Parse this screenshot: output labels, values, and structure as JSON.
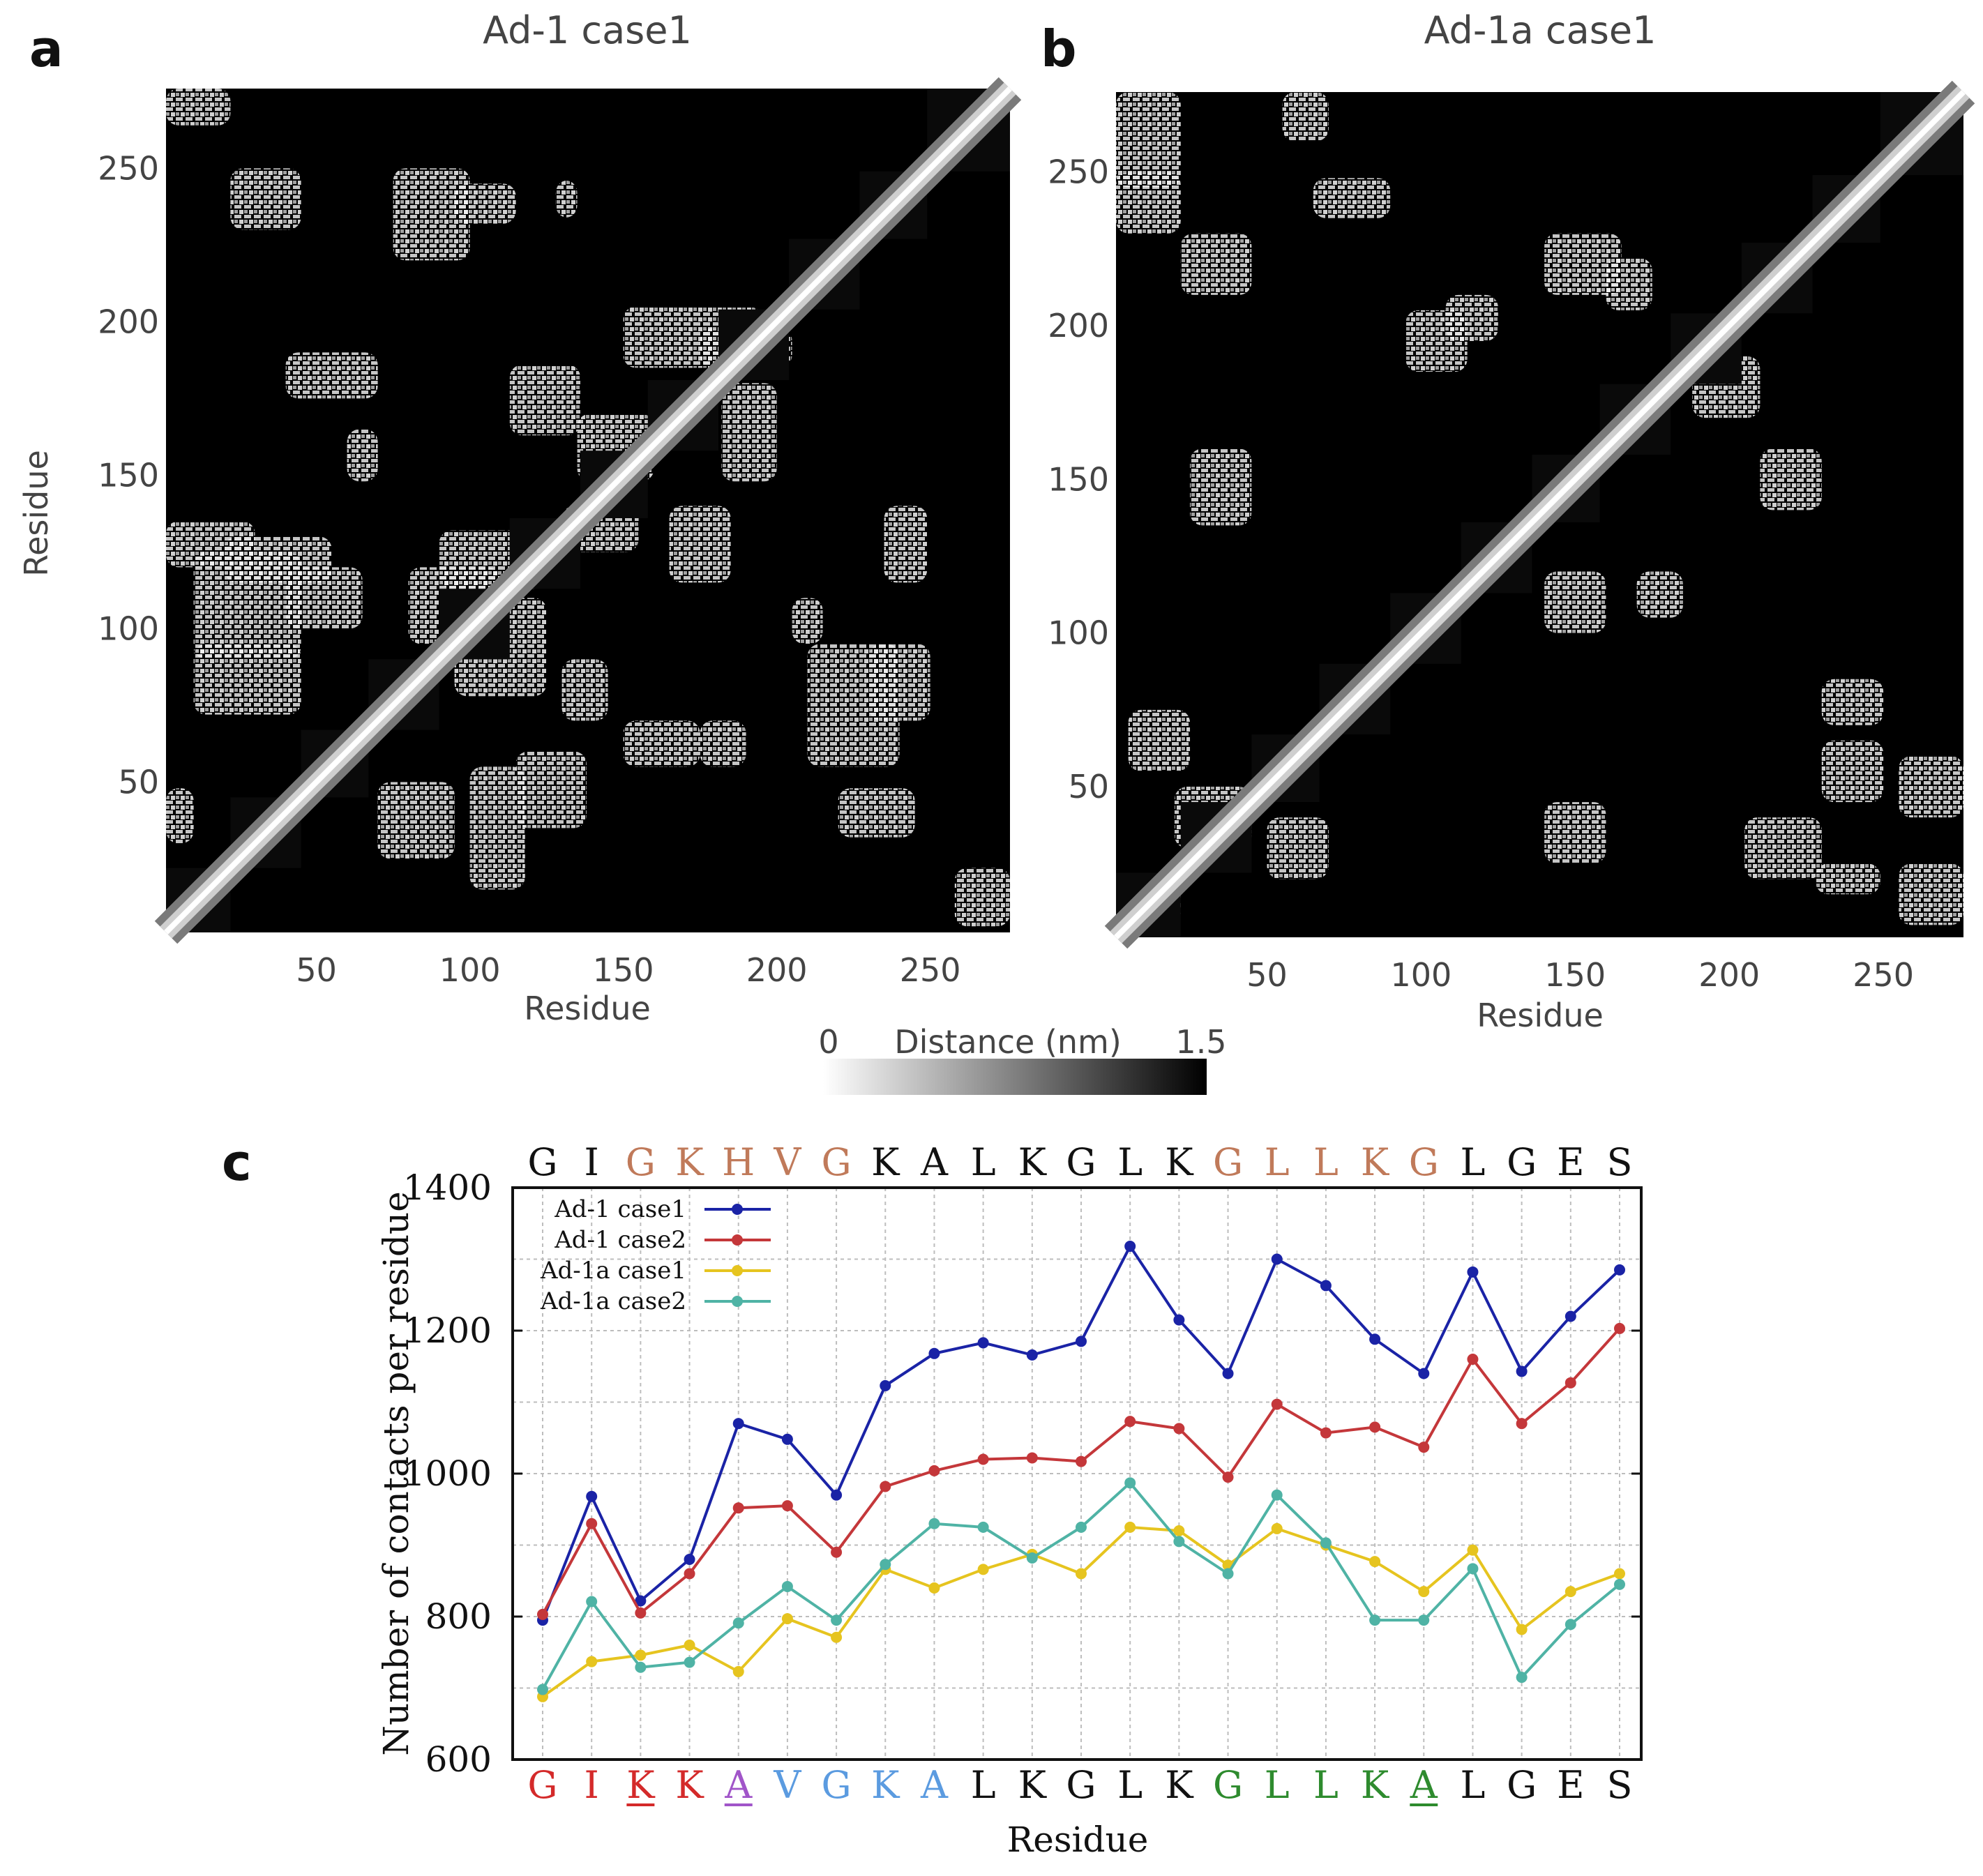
{
  "panels": {
    "a": {
      "letter": "a",
      "title": "Ad-1 case1",
      "xlabel": "Residue",
      "ylabel": "Residue",
      "xticks": [
        "50",
        "100",
        "150",
        "200",
        "250"
      ],
      "yticks": [
        "50",
        "100",
        "150",
        "200",
        "250"
      ]
    },
    "b": {
      "letter": "b",
      "title": "Ad-1a case1",
      "xlabel": "Residue",
      "xticks": [
        "50",
        "100",
        "150",
        "200",
        "250"
      ],
      "yticks": [
        "50",
        "100",
        "150",
        "200",
        "250"
      ]
    },
    "c": {
      "letter": "c"
    }
  },
  "colorbar": {
    "label": "Distance (nm)",
    "min_label": "0",
    "max_label": "1.5"
  },
  "colors": {
    "ad1_case1": "#1a23a6",
    "ad1_case2": "#c4373a",
    "ad1a_case1": "#e6c41f",
    "ad1a_case2": "#4fb3a5",
    "brown": "#c07a5a",
    "red": "#d42a2a",
    "purple": "#a155c9",
    "blue": "#5b9be0",
    "green": "#2e8b2e",
    "black": "#111111"
  },
  "chart_data": [
    {
      "type": "heatmap",
      "title": "Ad-1 case1",
      "xlabel": "Residue",
      "ylabel": "Residue",
      "xlim": [
        1,
        276
      ],
      "ylim": [
        1,
        276
      ],
      "diagonal_blocks": [
        [
          1,
          22
        ],
        [
          22,
          45
        ],
        [
          45,
          67
        ],
        [
          67,
          90
        ],
        [
          90,
          113
        ],
        [
          113,
          136
        ],
        [
          136,
          158
        ],
        [
          158,
          181
        ],
        [
          181,
          204
        ],
        [
          204,
          227
        ],
        [
          227,
          249
        ],
        [
          249,
          276
        ]
      ],
      "contact_regions": [
        [
          1,
          264,
          22,
          276
        ],
        [
          22,
          230,
          45,
          250
        ],
        [
          75,
          220,
          100,
          250
        ],
        [
          95,
          232,
          115,
          245
        ],
        [
          128,
          234,
          135,
          246
        ],
        [
          40,
          175,
          70,
          190
        ],
        [
          60,
          148,
          70,
          165
        ],
        [
          150,
          185,
          195,
          205
        ],
        [
          175,
          185,
          205,
          198
        ],
        [
          113,
          163,
          136,
          186
        ],
        [
          135,
          148,
          160,
          170
        ],
        [
          182,
          148,
          200,
          180
        ],
        [
          1,
          120,
          30,
          135
        ],
        [
          20,
          115,
          55,
          130
        ],
        [
          90,
          113,
          125,
          132
        ],
        [
          10,
          90,
          45,
          125
        ],
        [
          10,
          72,
          45,
          95
        ],
        [
          40,
          100,
          65,
          120
        ],
        [
          80,
          95,
          110,
          120
        ],
        [
          95,
          78,
          125,
          110
        ],
        [
          150,
          55,
          175,
          70
        ],
        [
          175,
          55,
          190,
          70
        ],
        [
          115,
          35,
          138,
          60
        ],
        [
          100,
          15,
          118,
          55
        ],
        [
          70,
          25,
          95,
          50
        ],
        [
          210,
          55,
          240,
          95
        ],
        [
          230,
          70,
          250,
          95
        ],
        [
          220,
          32,
          245,
          48
        ],
        [
          258,
          3,
          276,
          22
        ],
        [
          1,
          30,
          10,
          48
        ],
        [
          130,
          70,
          145,
          90
        ],
        [
          130,
          125,
          155,
          140
        ],
        [
          165,
          115,
          185,
          140
        ],
        [
          235,
          115,
          249,
          140
        ],
        [
          205,
          95,
          215,
          110
        ]
      ]
    },
    {
      "type": "heatmap",
      "title": "Ad-1a case1",
      "xlabel": "Residue",
      "ylabel": "Residue",
      "xlim": [
        1,
        276
      ],
      "ylim": [
        1,
        276
      ],
      "diagonal_blocks": [
        [
          1,
          22
        ],
        [
          22,
          45
        ],
        [
          45,
          67
        ],
        [
          67,
          90
        ],
        [
          90,
          113
        ],
        [
          113,
          136
        ],
        [
          136,
          158
        ],
        [
          158,
          181
        ],
        [
          181,
          204
        ],
        [
          204,
          227
        ],
        [
          227,
          249
        ],
        [
          249,
          276
        ]
      ],
      "contact_regions": [
        [
          1,
          245,
          22,
          276
        ],
        [
          1,
          230,
          22,
          250
        ],
        [
          22,
          210,
          45,
          230
        ],
        [
          55,
          260,
          70,
          276
        ],
        [
          65,
          235,
          90,
          248
        ],
        [
          140,
          210,
          165,
          230
        ],
        [
          160,
          205,
          175,
          222
        ],
        [
          95,
          185,
          115,
          205
        ],
        [
          108,
          195,
          125,
          210
        ],
        [
          188,
          170,
          210,
          190
        ],
        [
          210,
          140,
          230,
          160
        ],
        [
          25,
          135,
          45,
          160
        ],
        [
          140,
          100,
          160,
          120
        ],
        [
          170,
          105,
          185,
          120
        ],
        [
          230,
          45,
          250,
          65
        ],
        [
          230,
          70,
          250,
          85
        ],
        [
          255,
          40,
          276,
          60
        ],
        [
          140,
          25,
          160,
          45
        ],
        [
          5,
          55,
          25,
          75
        ],
        [
          50,
          20,
          70,
          40
        ],
        [
          20,
          30,
          45,
          50
        ],
        [
          205,
          20,
          230,
          40
        ],
        [
          228,
          15,
          249,
          25
        ],
        [
          255,
          5,
          276,
          25
        ],
        [
          1,
          5,
          22,
          22
        ]
      ]
    },
    {
      "type": "line",
      "title": "",
      "xlabel": "Residue",
      "ylabel": "Number of contacts per residue",
      "ylim": [
        600,
        1400
      ],
      "yticks": [
        600,
        800,
        1000,
        1200,
        1400
      ],
      "grid": true,
      "legend_position": "top-left",
      "top_sequence": [
        "G",
        "I",
        "G",
        "K",
        "H",
        "V",
        "G",
        "K",
        "A",
        "L",
        "K",
        "G",
        "L",
        "K",
        "G",
        "L",
        "L",
        "K",
        "G",
        "L",
        "G",
        "E",
        "S"
      ],
      "top_sequence_colors": [
        "black",
        "black",
        "brown",
        "brown",
        "brown",
        "brown",
        "brown",
        "black",
        "black",
        "black",
        "black",
        "black",
        "black",
        "black",
        "brown",
        "brown",
        "brown",
        "brown",
        "brown",
        "black",
        "black",
        "black",
        "black"
      ],
      "categories": [
        "G",
        "I",
        "K",
        "K",
        "A",
        "V",
        "G",
        "K",
        "A",
        "L",
        "K",
        "G",
        "L",
        "K",
        "G",
        "L",
        "L",
        "K",
        "A",
        "L",
        "G",
        "E",
        "S"
      ],
      "category_colors": [
        "red",
        "red",
        "red",
        "red",
        "purple",
        "blue",
        "blue",
        "blue",
        "blue",
        "black",
        "black",
        "black",
        "black",
        "black",
        "green",
        "green",
        "green",
        "green",
        "green",
        "black",
        "black",
        "black",
        "black"
      ],
      "category_underline": [
        false,
        false,
        true,
        false,
        true,
        false,
        false,
        false,
        false,
        false,
        false,
        false,
        false,
        false,
        false,
        false,
        false,
        false,
        true,
        false,
        false,
        false,
        false
      ],
      "series": [
        {
          "name": "Ad-1 case1",
          "color": "ad1_case1",
          "values": [
            795,
            968,
            822,
            880,
            1070,
            1048,
            970,
            1123,
            1168,
            1183,
            1166,
            1185,
            1318,
            1215,
            1140,
            1300,
            1263,
            1188,
            1140,
            1282,
            1143,
            1220,
            1285
          ]
        },
        {
          "name": "Ad-1 case2",
          "color": "ad1_case2",
          "values": [
            803,
            930,
            805,
            860,
            952,
            955,
            890,
            982,
            1004,
            1020,
            1022,
            1017,
            1073,
            1063,
            995,
            1097,
            1057,
            1065,
            1037,
            1160,
            1070,
            1127,
            1203
          ]
        },
        {
          "name": "Ad-1a case1",
          "color": "ad1a_case1",
          "values": [
            688,
            737,
            746,
            760,
            723,
            797,
            771,
            866,
            840,
            866,
            887,
            860,
            925,
            920,
            872,
            923,
            900,
            877,
            835,
            893,
            782,
            835,
            860
          ]
        },
        {
          "name": "Ad-1a case2",
          "color": "ad1a_case2",
          "values": [
            698,
            821,
            729,
            736,
            791,
            842,
            795,
            873,
            930,
            925,
            882,
            925,
            987,
            905,
            860,
            970,
            903,
            795,
            795,
            867,
            715,
            789,
            845
          ]
        }
      ]
    }
  ]
}
